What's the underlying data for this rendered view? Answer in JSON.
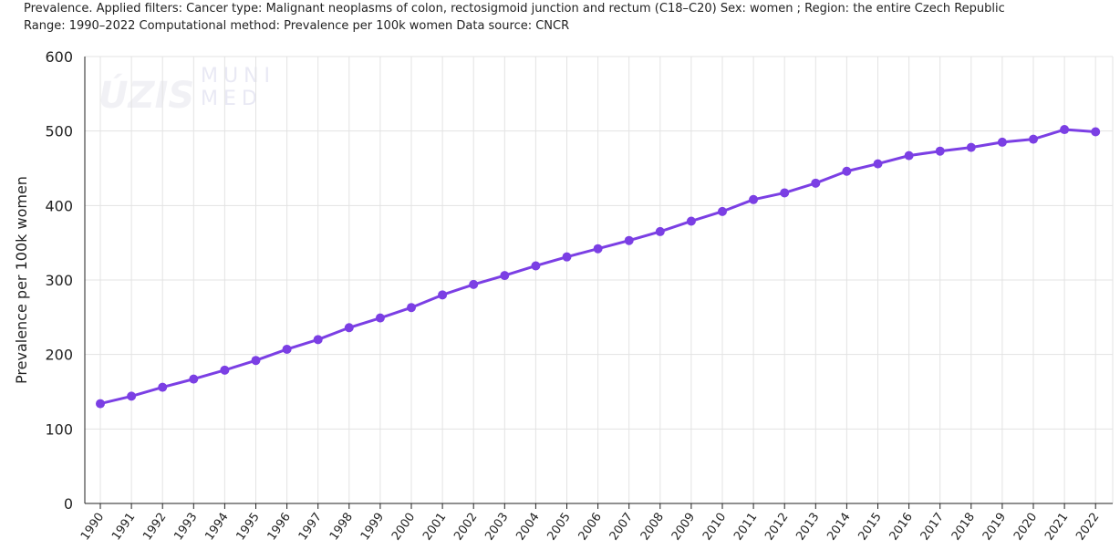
{
  "header": {
    "line1": "Prevalence. Applied filters: Cancer type: Malignant neoplasms of colon, rectosigmoid junction and rectum (C18–C20) Sex: women ; Region: the entire Czech Republic",
    "line2": "Range: 1990–2022 Computational method: Prevalence per 100k women Data source: CNCR"
  },
  "watermark": {
    "left": "ÚZIS",
    "right_top": "MUNI",
    "right_bottom": "MED"
  },
  "colors": {
    "series": "#7b3fe4",
    "grid": "#e3e3e3",
    "axis": "#222222"
  },
  "chart_data": {
    "type": "line",
    "title": "",
    "xlabel": "",
    "ylabel": "Prevalence per 100k women",
    "ylim": [
      0,
      600
    ],
    "yticks": [
      0,
      100,
      200,
      300,
      400,
      500,
      600
    ],
    "grid": true,
    "x": [
      "1990",
      "1991",
      "1992",
      "1993",
      "1994",
      "1995",
      "1996",
      "1997",
      "1998",
      "1999",
      "2000",
      "2001",
      "2002",
      "2003",
      "2004",
      "2005",
      "2006",
      "2007",
      "2008",
      "2009",
      "2010",
      "2011",
      "2012",
      "2013",
      "2014",
      "2015",
      "2016",
      "2017",
      "2018",
      "2019",
      "2020",
      "2021",
      "2022"
    ],
    "series": [
      {
        "values": [
          134,
          144,
          156,
          167,
          179,
          192,
          207,
          220,
          236,
          249,
          263,
          280,
          294,
          306,
          319,
          331,
          342,
          353,
          365,
          379,
          392,
          408,
          417,
          430,
          446,
          456,
          467,
          473,
          478,
          485,
          489,
          502,
          499
        ]
      }
    ]
  }
}
